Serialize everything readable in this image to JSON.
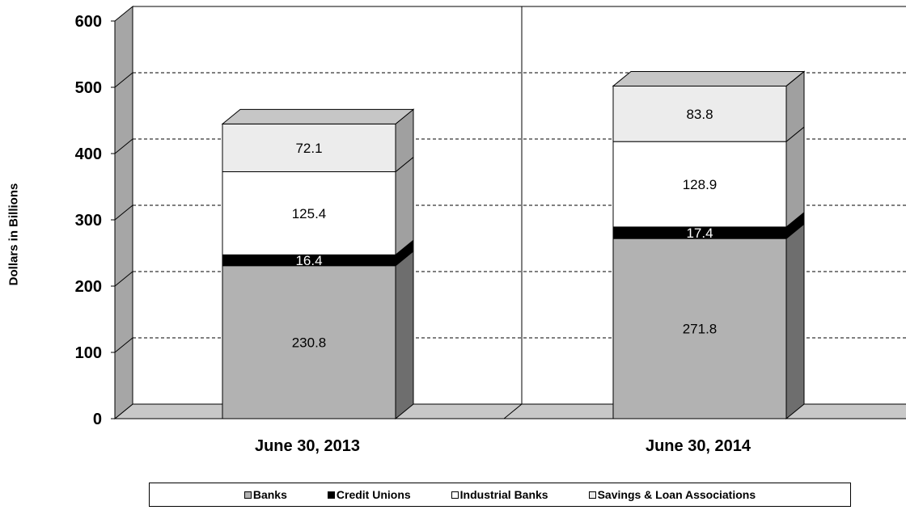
{
  "chart_data": {
    "type": "bar",
    "stacked": true,
    "three_d": true,
    "categories": [
      "June 30, 2013",
      "June 30, 2014"
    ],
    "series": [
      {
        "name": "Banks",
        "values": [
          230.8,
          271.8
        ],
        "color": "#b2b2b2",
        "label_color": "#000000"
      },
      {
        "name": "Credit Unions",
        "values": [
          16.4,
          17.4
        ],
        "color": "#000000",
        "label_color": "#ffffff"
      },
      {
        "name": "Industrial Banks",
        "values": [
          125.4,
          128.9
        ],
        "color": "#ffffff",
        "label_color": "#000000"
      },
      {
        "name": "Savings & Loan Associations",
        "values": [
          72.1,
          83.8
        ],
        "color": "#ececec",
        "label_color": "#000000"
      }
    ],
    "data_labels": [
      [
        "230.8",
        "271.8"
      ],
      [
        "16.4",
        "17.4"
      ],
      [
        "125.4",
        "128.9"
      ],
      [
        "72.1",
        "83.8"
      ]
    ],
    "ylabel": "Dollars in Billions",
    "xlabel": "",
    "ylim": [
      0,
      600
    ],
    "yticks": [
      0,
      100,
      200,
      300,
      400,
      500,
      600
    ],
    "ytick_labels": [
      "0",
      "100",
      "200",
      "300",
      "400",
      "500",
      "600"
    ],
    "grid": "dashed horizontal",
    "legend_position": "bottom"
  }
}
